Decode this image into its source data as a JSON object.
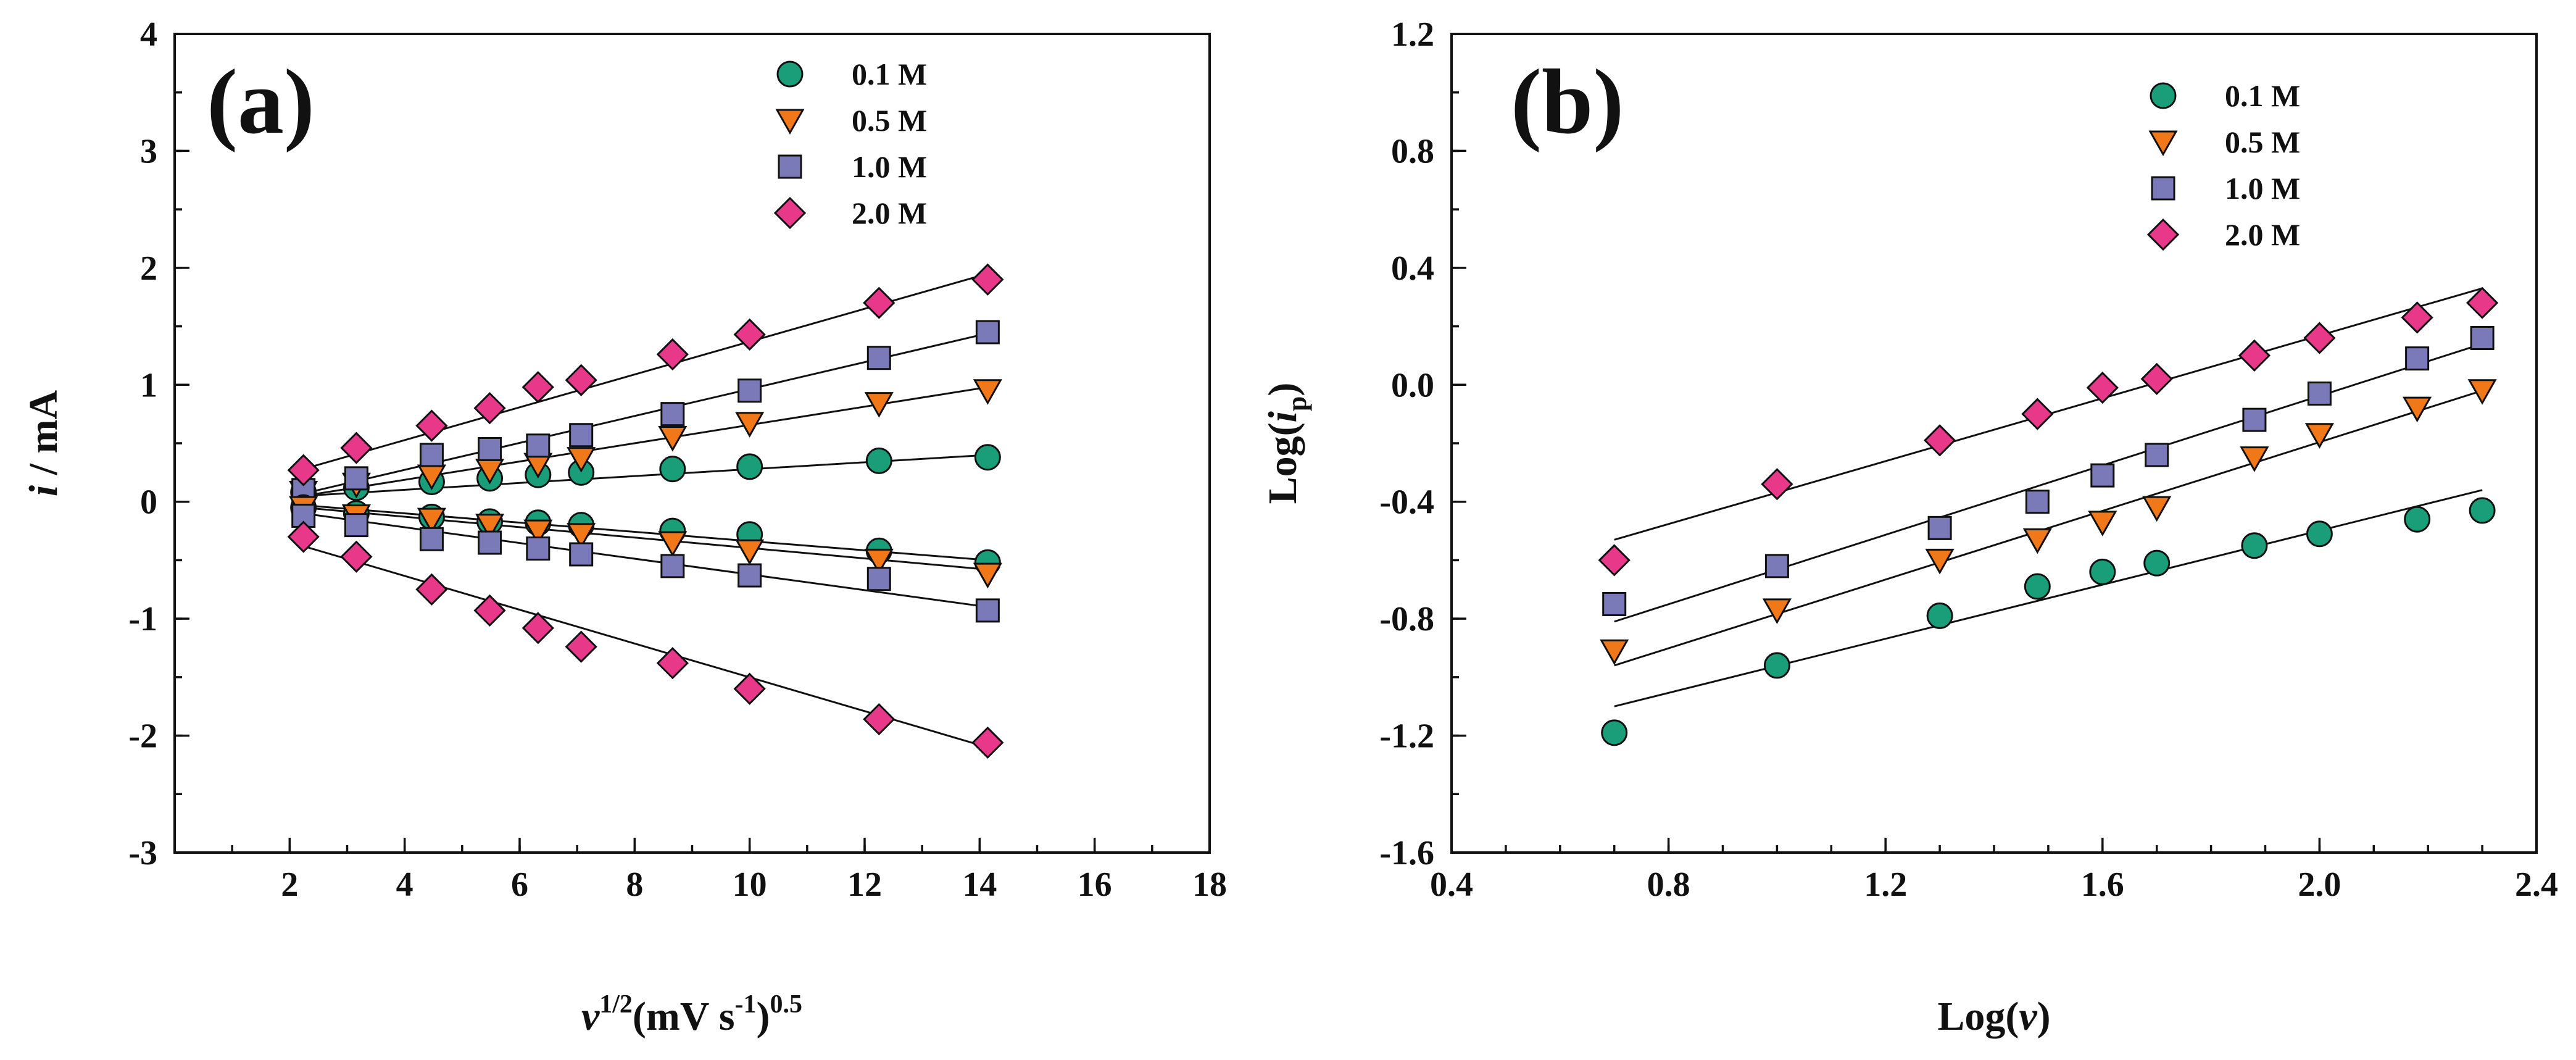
{
  "chart_data": [
    {
      "type": "scatter",
      "panel_label": "(a)",
      "xlabel": {
        "main": "ν",
        "sup1": "1/2",
        "unit": "(mV s",
        "sup2": "-1",
        "close": ")",
        "sup3": "0.5"
      },
      "ylabel": {
        "italic": "i",
        "rest": " / mA"
      },
      "xlim": [
        0,
        18
      ],
      "ylim": [
        -3,
        4
      ],
      "xticks": [
        "2",
        "4",
        "6",
        "8",
        "10",
        "12",
        "14",
        "16",
        "18"
      ],
      "yticks": [
        "-3",
        "-2",
        "-1",
        "0",
        "1",
        "2",
        "3",
        "4"
      ],
      "legend_position": "top-right",
      "x": [
        2.24,
        3.16,
        4.47,
        5.48,
        6.32,
        7.07,
        8.66,
        10.0,
        12.25,
        14.14
      ],
      "series": [
        {
          "name": "0.1 M",
          "marker": "circle",
          "color": "#1a9e7a",
          "values": [
            0.08,
            0.12,
            0.17,
            0.2,
            0.23,
            0.25,
            0.28,
            0.3,
            0.35,
            0.38
          ]
        },
        {
          "name": "0.5 M",
          "marker": "triangle-down",
          "color": "#f07818",
          "values": [
            0.08,
            0.15,
            0.22,
            0.27,
            0.32,
            0.37,
            0.55,
            0.67,
            0.84,
            0.95
          ]
        },
        {
          "name": "1.0 M",
          "marker": "square",
          "color": "#7a7ab8",
          "values": [
            0.1,
            0.2,
            0.4,
            0.45,
            0.48,
            0.57,
            0.75,
            0.95,
            1.23,
            1.45
          ]
        },
        {
          "name": "2.0 M",
          "marker": "diamond",
          "color": "#e8388a",
          "values": [
            0.27,
            0.46,
            0.65,
            0.8,
            0.98,
            1.04,
            1.26,
            1.43,
            1.7,
            1.9
          ]
        },
        {
          "name": "0.1 M",
          "marker": "circle",
          "color": "#1a9e7a",
          "legend": false,
          "values": [
            -0.05,
            -0.1,
            -0.13,
            -0.17,
            -0.18,
            -0.2,
            -0.25,
            -0.28,
            -0.42,
            -0.52
          ]
        },
        {
          "name": "0.5 M",
          "marker": "triangle-down",
          "color": "#f07818",
          "legend": false,
          "values": [
            -0.05,
            -0.12,
            -0.15,
            -0.2,
            -0.25,
            -0.28,
            -0.35,
            -0.42,
            -0.5,
            -0.62
          ]
        },
        {
          "name": "1.0 M",
          "marker": "square",
          "color": "#7a7ab8",
          "legend": false,
          "values": [
            -0.12,
            -0.2,
            -0.32,
            -0.35,
            -0.4,
            -0.45,
            -0.55,
            -0.63,
            -0.66,
            -0.93
          ]
        },
        {
          "name": "2.0 M",
          "marker": "diamond",
          "color": "#e8388a",
          "legend": false,
          "values": [
            -0.3,
            -0.47,
            -0.75,
            -0.93,
            -1.08,
            -1.24,
            -1.38,
            -1.6,
            -1.86,
            -2.06
          ]
        }
      ],
      "fits": [
        {
          "x": [
            2.24,
            14.14
          ],
          "y": [
            0.05,
            0.4
          ]
        },
        {
          "x": [
            2.24,
            14.14
          ],
          "y": [
            0.05,
            0.98
          ]
        },
        {
          "x": [
            2.24,
            14.14
          ],
          "y": [
            0.07,
            1.44
          ]
        },
        {
          "x": [
            2.24,
            14.14
          ],
          "y": [
            0.28,
            1.95
          ]
        },
        {
          "x": [
            2.24,
            14.14
          ],
          "y": [
            -0.03,
            -0.5
          ]
        },
        {
          "x": [
            2.24,
            14.14
          ],
          "y": [
            -0.05,
            -0.58
          ]
        },
        {
          "x": [
            2.24,
            14.14
          ],
          "y": [
            -0.1,
            -0.9
          ]
        },
        {
          "x": [
            2.24,
            14.14
          ],
          "y": [
            -0.38,
            -2.1
          ]
        }
      ]
    },
    {
      "type": "scatter",
      "panel_label": "(b)",
      "xlabel": {
        "pre": "Log(",
        "italic": "ν",
        "post": ")"
      },
      "ylabel": {
        "pre": "Log(",
        "italic": "i",
        "sub": "p",
        "post": ")"
      },
      "xlim": [
        0.4,
        2.4
      ],
      "ylim": [
        -1.6,
        1.2
      ],
      "xticks": [
        "0.4",
        "0.8",
        "1.2",
        "1.6",
        "2.0",
        "2.4"
      ],
      "yticks": [
        "-1.6",
        "-1.2",
        "-0.8",
        "-0.4",
        "0.0",
        "0.4",
        "0.8",
        "1.2"
      ],
      "legend_position": "top-right",
      "x": [
        0.7,
        1.0,
        1.3,
        1.48,
        1.6,
        1.7,
        1.88,
        2.0,
        2.18,
        2.3
      ],
      "series": [
        {
          "name": "0.1 M",
          "marker": "circle",
          "color": "#1a9e7a",
          "values": [
            -1.19,
            -0.96,
            -0.79,
            -0.69,
            -0.64,
            -0.61,
            -0.55,
            -0.51,
            -0.46,
            -0.43
          ]
        },
        {
          "name": "0.5 M",
          "marker": "triangle-down",
          "color": "#f07818",
          "values": [
            -0.91,
            -0.77,
            -0.6,
            -0.53,
            -0.47,
            -0.42,
            -0.25,
            -0.17,
            -0.08,
            -0.02
          ]
        },
        {
          "name": "1.0 M",
          "marker": "square",
          "color": "#7a7ab8",
          "values": [
            -0.75,
            -0.62,
            -0.49,
            -0.4,
            -0.31,
            -0.24,
            -0.12,
            -0.03,
            0.09,
            0.16
          ]
        },
        {
          "name": "2.0 M",
          "marker": "diamond",
          "color": "#e8388a",
          "values": [
            -0.6,
            -0.34,
            -0.19,
            -0.1,
            -0.01,
            0.02,
            0.1,
            0.16,
            0.23,
            0.28
          ]
        }
      ],
      "fits": [
        {
          "x": [
            0.7,
            2.3
          ],
          "y": [
            -1.1,
            -0.36
          ]
        },
        {
          "x": [
            0.7,
            2.3
          ],
          "y": [
            -0.96,
            -0.02
          ]
        },
        {
          "x": [
            0.7,
            2.3
          ],
          "y": [
            -0.81,
            0.14
          ]
        },
        {
          "x": [
            0.7,
            2.3
          ],
          "y": [
            -0.53,
            0.33
          ]
        }
      ]
    }
  ]
}
